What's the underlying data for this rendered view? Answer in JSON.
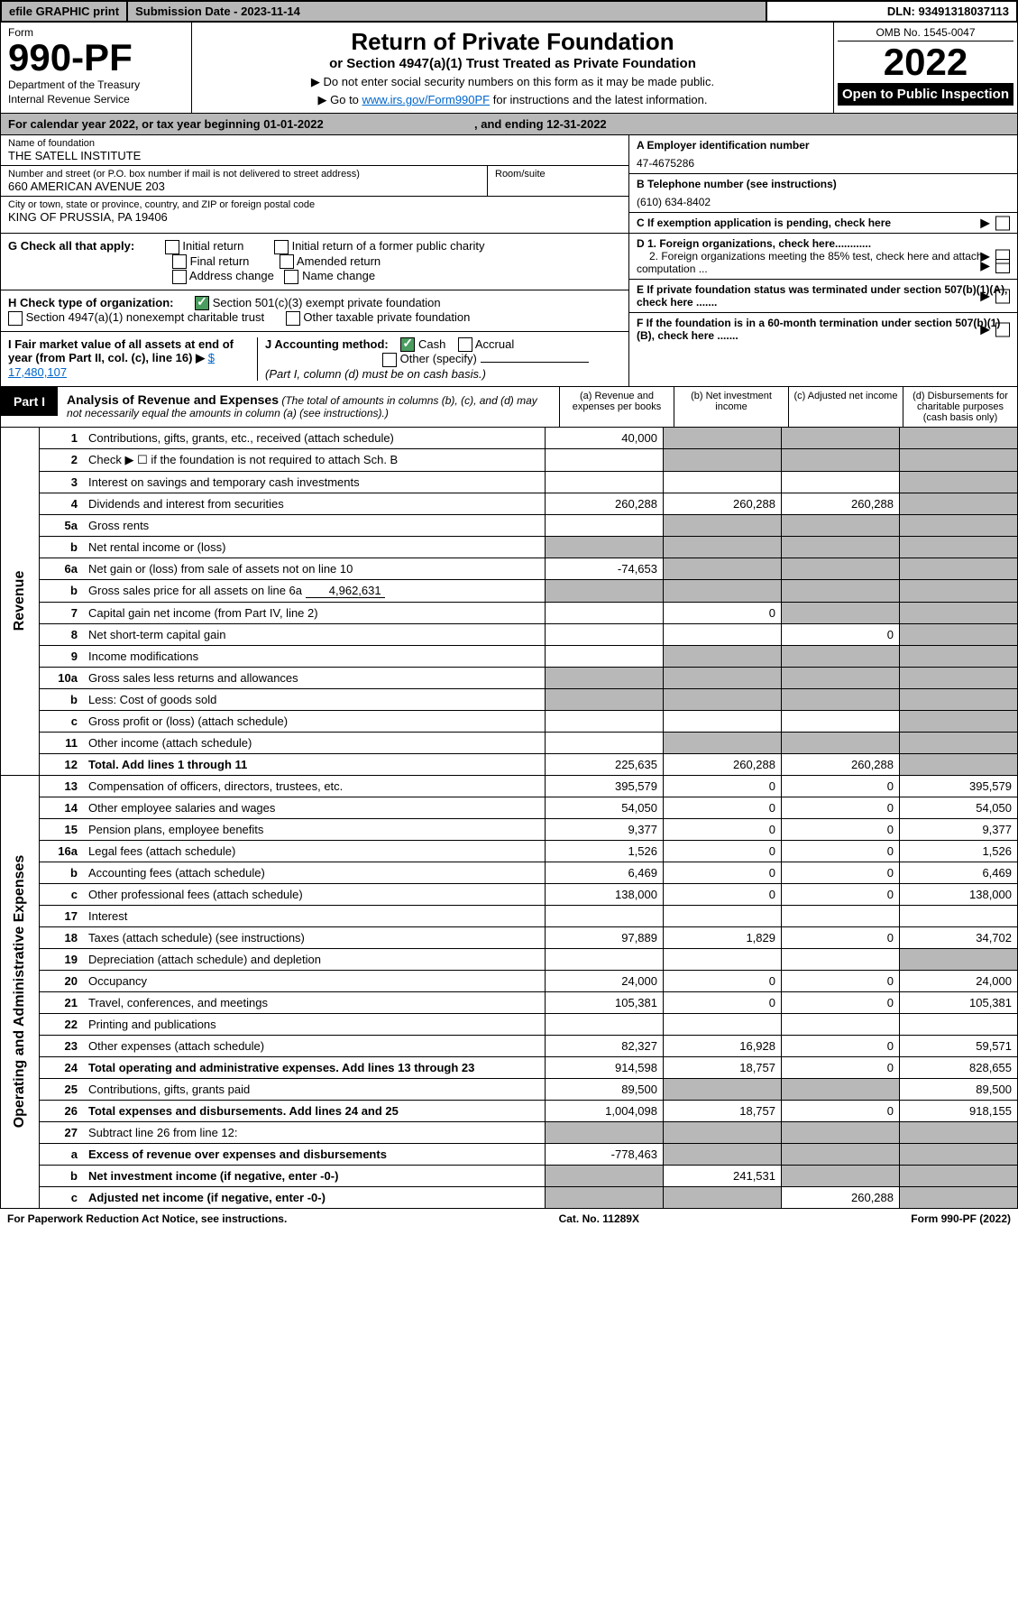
{
  "topbar": {
    "efile": "efile GRAPHIC print",
    "sub_label": "Submission Date - ",
    "sub_date": "2023-11-14",
    "dln": "DLN: 93491318037113"
  },
  "header": {
    "form_label": "Form",
    "form_no": "990-PF",
    "dept": "Department of the Treasury",
    "irs": "Internal Revenue Service",
    "title": "Return of Private Foundation",
    "subtitle": "or Section 4947(a)(1) Trust Treated as Private Foundation",
    "instr1": "▶ Do not enter social security numbers on this form as it may be made public.",
    "instr2_pre": "▶ Go to ",
    "instr2_link": "www.irs.gov/Form990PF",
    "instr2_post": " for instructions and the latest information.",
    "omb": "OMB No. 1545-0047",
    "year": "2022",
    "otp": "Open to Public Inspection"
  },
  "calendar": {
    "pre": "For calendar year 2022, or tax year beginning ",
    "begin": "01-01-2022",
    "mid": ", and ending ",
    "end": "12-31-2022"
  },
  "name": {
    "lbl": "Name of foundation",
    "val": "THE SATELL INSTITUTE"
  },
  "addr": {
    "lbl": "Number and street (or P.O. box number if mail is not delivered to street address)",
    "val": "660 AMERICAN AVENUE 203",
    "room_lbl": "Room/suite",
    "room_val": ""
  },
  "city": {
    "lbl": "City or town, state or province, country, and ZIP or foreign postal code",
    "val": "KING OF PRUSSIA, PA  19406"
  },
  "boxA": {
    "lbl": "A Employer identification number",
    "val": "47-4675286"
  },
  "boxB": {
    "lbl": "B Telephone number (see instructions)",
    "val": "(610) 634-8402"
  },
  "boxC": "C If exemption application is pending, check here",
  "boxD1": "D 1. Foreign organizations, check here............",
  "boxD2": "2. Foreign organizations meeting the 85% test, check here and attach computation ...",
  "boxE": "E  If private foundation status was terminated under section 507(b)(1)(A), check here .......",
  "boxF": "F  If the foundation is in a 60-month termination under section 507(b)(1)(B), check here .......",
  "G": {
    "lbl": "G Check all that apply:",
    "o1": "Initial return",
    "o2": "Final return",
    "o3": "Address change",
    "o4": "Initial return of a former public charity",
    "o5": "Amended return",
    "o6": "Name change"
  },
  "H": {
    "lbl": "H Check type of organization:",
    "o1": "Section 501(c)(3) exempt private foundation",
    "o2": "Section 4947(a)(1) nonexempt charitable trust",
    "o3": "Other taxable private foundation"
  },
  "I": {
    "lbl": "I Fair market value of all assets at end of year (from Part II, col. (c), line 16) ▶",
    "val": "$ 17,480,107"
  },
  "J": {
    "lbl": "J Accounting method:",
    "o1": "Cash",
    "o2": "Accrual",
    "o3": "Other (specify)",
    "note": "(Part I, column (d) must be on cash basis.)"
  },
  "part1": {
    "lbl": "Part I",
    "title": "Analysis of Revenue and Expenses",
    "desc": "(The total of amounts in columns (b), (c), and (d) may not necessarily equal the amounts in column (a) (see instructions).)",
    "ca": "(a)  Revenue and expenses per books",
    "cb": "(b)  Net investment income",
    "cc": "(c)  Adjusted net income",
    "cd": "(d)  Disbursements for charitable purposes (cash basis only)"
  },
  "side_rev": "Revenue",
  "side_exp": "Operating and Administrative Expenses",
  "rows": [
    {
      "n": "1",
      "d": "Contributions, gifts, grants, etc., received (attach schedule)",
      "a": "40,000"
    },
    {
      "n": "2",
      "d": "Check ▶ ☐ if the foundation is not required to attach Sch. B"
    },
    {
      "n": "3",
      "d": "Interest on savings and temporary cash investments"
    },
    {
      "n": "4",
      "d": "Dividends and interest from securities",
      "a": "260,288",
      "b": "260,288",
      "c": "260,288"
    },
    {
      "n": "5a",
      "d": "Gross rents"
    },
    {
      "n": "b",
      "d": "Net rental income or (loss)"
    },
    {
      "n": "6a",
      "d": "Net gain or (loss) from sale of assets not on line 10",
      "a": "-74,653"
    },
    {
      "n": "b",
      "d": "Gross sales price for all assets on line 6a",
      "inline": "4,962,631"
    },
    {
      "n": "7",
      "d": "Capital gain net income (from Part IV, line 2)",
      "b": "0"
    },
    {
      "n": "8",
      "d": "Net short-term capital gain",
      "c": "0"
    },
    {
      "n": "9",
      "d": "Income modifications"
    },
    {
      "n": "10a",
      "d": "Gross sales less returns and allowances"
    },
    {
      "n": "b",
      "d": "Less: Cost of goods sold"
    },
    {
      "n": "c",
      "d": "Gross profit or (loss) (attach schedule)"
    },
    {
      "n": "11",
      "d": "Other income (attach schedule)"
    },
    {
      "n": "12",
      "d": "Total. Add lines 1 through 11",
      "bold": true,
      "a": "225,635",
      "b": "260,288",
      "c": "260,288"
    }
  ],
  "erows": [
    {
      "n": "13",
      "d": "Compensation of officers, directors, trustees, etc.",
      "a": "395,579",
      "b": "0",
      "c": "0",
      "e": "395,579"
    },
    {
      "n": "14",
      "d": "Other employee salaries and wages",
      "a": "54,050",
      "b": "0",
      "c": "0",
      "e": "54,050"
    },
    {
      "n": "15",
      "d": "Pension plans, employee benefits",
      "a": "9,377",
      "b": "0",
      "c": "0",
      "e": "9,377"
    },
    {
      "n": "16a",
      "d": "Legal fees (attach schedule)",
      "a": "1,526",
      "b": "0",
      "c": "0",
      "e": "1,526"
    },
    {
      "n": "b",
      "d": "Accounting fees (attach schedule)",
      "a": "6,469",
      "b": "0",
      "c": "0",
      "e": "6,469"
    },
    {
      "n": "c",
      "d": "Other professional fees (attach schedule)",
      "a": "138,000",
      "b": "0",
      "c": "0",
      "e": "138,000"
    },
    {
      "n": "17",
      "d": "Interest"
    },
    {
      "n": "18",
      "d": "Taxes (attach schedule) (see instructions)",
      "a": "97,889",
      "b": "1,829",
      "c": "0",
      "e": "34,702"
    },
    {
      "n": "19",
      "d": "Depreciation (attach schedule) and depletion"
    },
    {
      "n": "20",
      "d": "Occupancy",
      "a": "24,000",
      "b": "0",
      "c": "0",
      "e": "24,000"
    },
    {
      "n": "21",
      "d": "Travel, conferences, and meetings",
      "a": "105,381",
      "b": "0",
      "c": "0",
      "e": "105,381"
    },
    {
      "n": "22",
      "d": "Printing and publications"
    },
    {
      "n": "23",
      "d": "Other expenses (attach schedule)",
      "a": "82,327",
      "b": "16,928",
      "c": "0",
      "e": "59,571"
    },
    {
      "n": "24",
      "d": "Total operating and administrative expenses. Add lines 13 through 23",
      "bold": true,
      "a": "914,598",
      "b": "18,757",
      "c": "0",
      "e": "828,655"
    },
    {
      "n": "25",
      "d": "Contributions, gifts, grants paid",
      "a": "89,500",
      "e": "89,500"
    },
    {
      "n": "26",
      "d": "Total expenses and disbursements. Add lines 24 and 25",
      "bold": true,
      "a": "1,004,098",
      "b": "18,757",
      "c": "0",
      "e": "918,155"
    },
    {
      "n": "27",
      "d": "Subtract line 26 from line 12:"
    },
    {
      "n": "a",
      "d": "Excess of revenue over expenses and disbursements",
      "bold": true,
      "a": "-778,463"
    },
    {
      "n": "b",
      "d": "Net investment income (if negative, enter -0-)",
      "bold": true,
      "b": "241,531"
    },
    {
      "n": "c",
      "d": "Adjusted net income (if negative, enter -0-)",
      "bold": true,
      "c": "260,288"
    }
  ],
  "footer": {
    "left": "For Paperwork Reduction Act Notice, see instructions.",
    "mid": "Cat. No. 11289X",
    "right": "Form 990-PF (2022)"
  }
}
